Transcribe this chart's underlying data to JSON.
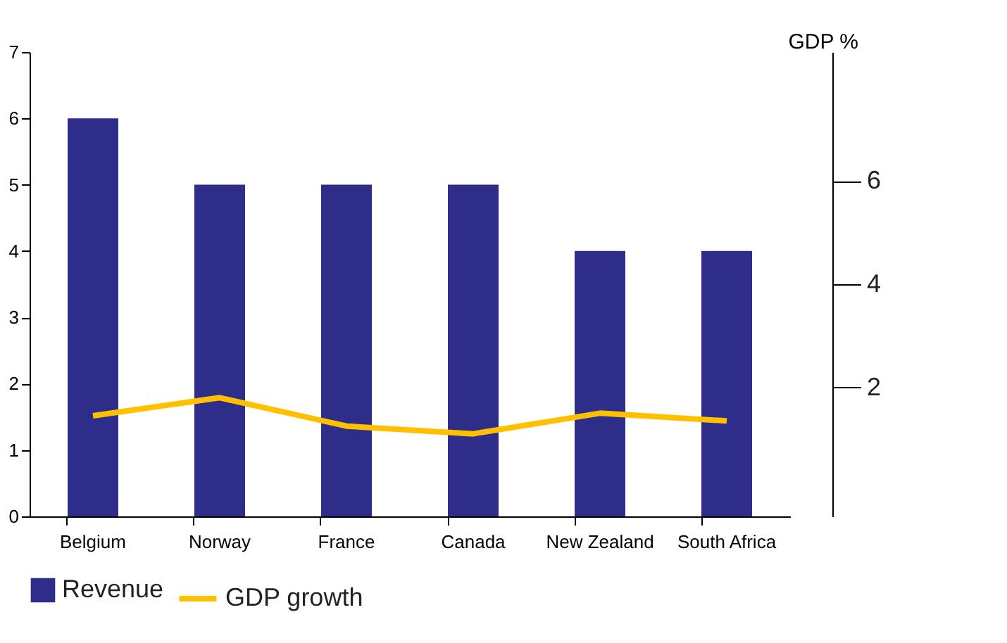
{
  "chart_data": {
    "type": "bar",
    "y2label": "GDP %",
    "categories": [
      "Belgium",
      "Norway",
      "France",
      "Canada",
      "New Zealand",
      "South Africa"
    ],
    "series": [
      {
        "name": "Revenue",
        "color": "#2e2e8a",
        "values": [
          6,
          5,
          5,
          5,
          4,
          4
        ]
      },
      {
        "name": "GDP growth",
        "type": "line",
        "axis": "y2",
        "color": "#ffc000",
        "values": [
          1.45,
          1.8,
          1.25,
          1.1,
          1.5,
          1.35
        ]
      }
    ],
    "ylim": [
      0,
      7
    ],
    "yticks": [
      0,
      1,
      2,
      3,
      4,
      5,
      6,
      7
    ],
    "y2lim": [
      -0.5,
      8.5
    ],
    "y2ticks": [
      2,
      4,
      6
    ],
    "grid": false,
    "legend": "bottom"
  }
}
